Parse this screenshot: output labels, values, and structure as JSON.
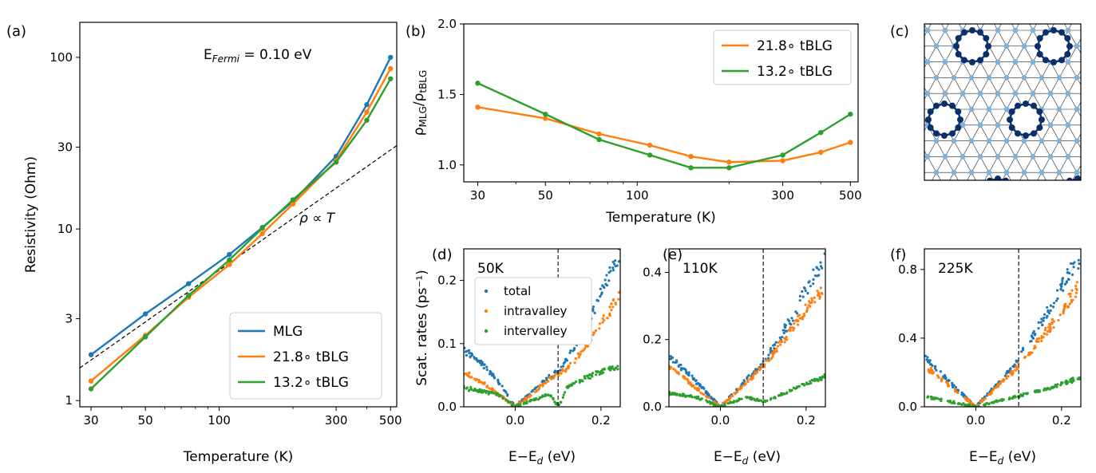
{
  "colors": {
    "mlg": "#1f77b4",
    "tblg218": "#ff7f0e",
    "tblg132": "#2ca02c",
    "dark_atom": "#0b2f6b",
    "light_atom": "#7fb3dc"
  },
  "chart_data": [
    {
      "id": "a",
      "type": "line",
      "panel_label": "(a)",
      "annotation": "E",
      "annotation_sub": "Fermi",
      "annotation_value": " = 0.10 eV",
      "fit_label": "ρ ∝ T",
      "xlabel": "Temperature (K)",
      "ylabel": "Resistivity (Ohm)",
      "xscale": "log",
      "yscale": "log",
      "xlim": [
        27,
        530
      ],
      "ylim": [
        0.92,
        160
      ],
      "xticks": [
        30,
        50,
        100,
        300,
        500
      ],
      "yticks": [
        1,
        3,
        10,
        30,
        100
      ],
      "legend_position": "lower right",
      "series": [
        {
          "name": "MLG",
          "x": [
            30,
            50,
            75,
            110,
            150,
            200,
            300,
            400,
            500
          ],
          "y": [
            1.85,
            3.2,
            4.8,
            7.1,
            10.2,
            14.5,
            26.5,
            53,
            100
          ]
        },
        {
          "name": "21.8$^\\circ$ tBLG",
          "label": "21.8∘ tBLG",
          "x": [
            30,
            50,
            75,
            110,
            150,
            200,
            300,
            400,
            500
          ],
          "y": [
            1.3,
            2.4,
            4.0,
            6.2,
            9.4,
            14.0,
            25.0,
            48,
            86
          ]
        },
        {
          "name": "13.2$^\\circ$ tBLG",
          "label": "13.2∘ tBLG",
          "x": [
            30,
            50,
            75,
            110,
            150,
            200,
            300,
            400,
            500
          ],
          "y": [
            1.17,
            2.35,
            4.1,
            6.6,
            10.1,
            14.8,
            24.5,
            43,
            75
          ]
        }
      ],
      "fit_line": {
        "x": [
          27,
          530
        ],
        "y": [
          1.55,
          30.6
        ]
      }
    },
    {
      "id": "b",
      "type": "line",
      "panel_label": "(b)",
      "xlabel": "Temperature (K)",
      "ylabel": "ρMLG/ρtBLG",
      "ylabel_main1": "ρ",
      "ylabel_sub1": "MLG",
      "ylabel_main2": "/ρ",
      "ylabel_sub2": "tBLG",
      "xscale": "log",
      "xlim": [
        27,
        530
      ],
      "ylim": [
        0.88,
        2.0
      ],
      "xticks": [
        30,
        50,
        100,
        300,
        500
      ],
      "yticks": [
        1.0,
        1.5,
        2.0
      ],
      "ytick_labels": [
        "1.0",
        "1.5",
        "2.0"
      ],
      "legend_position": "upper right",
      "series": [
        {
          "name": "21.8∘ tBLG",
          "x": [
            30,
            50,
            75,
            110,
            150,
            200,
            300,
            400,
            500
          ],
          "y": [
            1.41,
            1.33,
            1.22,
            1.14,
            1.06,
            1.02,
            1.03,
            1.09,
            1.16
          ]
        },
        {
          "name": "13.2∘ tBLG",
          "x": [
            30,
            50,
            75,
            110,
            150,
            200,
            300,
            400,
            500
          ],
          "y": [
            1.58,
            1.36,
            1.18,
            1.07,
            0.98,
            0.98,
            1.07,
            1.23,
            1.36
          ]
        }
      ]
    },
    {
      "id": "d",
      "type": "scatter",
      "panel_label": "(d)",
      "temperature_label": "50K",
      "xlabel": "E−E",
      "xlabel_sub": "d",
      "xlabel_unit": " (eV)",
      "ylabel": "Scat. rates (ps⁻¹)",
      "xlim": [
        -0.12,
        0.245
      ],
      "ylim": [
        0,
        0.25
      ],
      "xticks": [
        0.0,
        0.2
      ],
      "xtick_labels": [
        "0.0",
        "0.2"
      ],
      "yticks": [
        0.0,
        0.1,
        0.2
      ],
      "ytick_labels": [
        "0.0",
        "0.1",
        "0.2"
      ],
      "vline_x": 0.1,
      "legend_position": "upper left",
      "legend": [
        "total",
        "intravalley",
        "intervalley"
      ],
      "series": [
        {
          "name": "total",
          "x": [
            -0.12,
            -0.08,
            -0.04,
            0.0,
            0.04,
            0.08,
            0.1,
            0.12,
            0.16,
            0.2,
            0.245
          ],
          "y": [
            0.09,
            0.07,
            0.04,
            0.0,
            0.025,
            0.05,
            0.055,
            0.075,
            0.12,
            0.18,
            0.245
          ]
        },
        {
          "name": "intravalley",
          "x": [
            -0.12,
            -0.08,
            -0.04,
            0.0,
            0.04,
            0.08,
            0.1,
            0.12,
            0.16,
            0.2,
            0.245
          ],
          "y": [
            0.055,
            0.04,
            0.02,
            0.0,
            0.02,
            0.045,
            0.05,
            0.06,
            0.09,
            0.13,
            0.18
          ]
        },
        {
          "name": "intervalley",
          "x": [
            -0.12,
            -0.08,
            -0.04,
            0.0,
            0.04,
            0.08,
            0.095,
            0.105,
            0.12,
            0.16,
            0.2,
            0.245
          ],
          "y": [
            0.03,
            0.025,
            0.02,
            0.0,
            0.01,
            0.02,
            0.005,
            0.005,
            0.03,
            0.045,
            0.055,
            0.065
          ]
        }
      ]
    },
    {
      "id": "e",
      "type": "scatter",
      "panel_label": "(e)",
      "temperature_label": "110K",
      "xlabel": "E−E",
      "xlabel_sub": "d",
      "xlabel_unit": " (eV)",
      "xlim": [
        -0.12,
        0.245
      ],
      "ylim": [
        0,
        0.47
      ],
      "xticks": [
        0.0,
        0.2
      ],
      "xtick_labels": [
        "0.0",
        "0.2"
      ],
      "yticks": [
        0.0,
        0.2,
        0.4
      ],
      "ytick_labels": [
        "0.0",
        "0.2",
        "0.4"
      ],
      "vline_x": 0.1,
      "series": [
        {
          "name": "total",
          "x": [
            -0.12,
            -0.06,
            0.0,
            0.06,
            0.1,
            0.16,
            0.2,
            0.245
          ],
          "y": [
            0.15,
            0.08,
            0.0,
            0.08,
            0.13,
            0.25,
            0.35,
            0.45
          ]
        },
        {
          "name": "intravalley",
          "x": [
            -0.12,
            -0.06,
            0.0,
            0.06,
            0.1,
            0.16,
            0.2,
            0.245
          ],
          "y": [
            0.12,
            0.06,
            0.0,
            0.07,
            0.12,
            0.22,
            0.29,
            0.36
          ]
        },
        {
          "name": "intervalley",
          "x": [
            -0.12,
            -0.06,
            0.0,
            0.06,
            0.1,
            0.16,
            0.2,
            0.245
          ],
          "y": [
            0.04,
            0.03,
            0.0,
            0.03,
            0.015,
            0.045,
            0.07,
            0.09
          ]
        }
      ]
    },
    {
      "id": "f",
      "type": "scatter",
      "panel_label": "(f)",
      "temperature_label": "225K",
      "xlabel": "E−E",
      "xlabel_sub": "d",
      "xlabel_unit": " (eV)",
      "xlim": [
        -0.12,
        0.245
      ],
      "ylim": [
        0,
        0.92
      ],
      "xticks": [
        0.0,
        0.2
      ],
      "xtick_labels": [
        "0.0",
        "0.2"
      ],
      "yticks": [
        0.0,
        0.4,
        0.8
      ],
      "ytick_labels": [
        "0.0",
        "0.4",
        "0.8"
      ],
      "vline_x": 0.1,
      "series": [
        {
          "name": "total",
          "x": [
            -0.12,
            -0.06,
            0.0,
            0.06,
            0.1,
            0.16,
            0.2,
            0.245
          ],
          "y": [
            0.3,
            0.14,
            0.0,
            0.16,
            0.28,
            0.52,
            0.7,
            0.88
          ]
        },
        {
          "name": "intravalley",
          "x": [
            -0.12,
            -0.06,
            0.0,
            0.06,
            0.1,
            0.16,
            0.2,
            0.245
          ],
          "y": [
            0.24,
            0.12,
            0.0,
            0.14,
            0.24,
            0.42,
            0.56,
            0.72
          ]
        },
        {
          "name": "intervalley",
          "x": [
            -0.12,
            -0.06,
            0.0,
            0.06,
            0.1,
            0.16,
            0.2,
            0.245
          ],
          "y": [
            0.06,
            0.03,
            0.0,
            0.04,
            0.06,
            0.1,
            0.13,
            0.17
          ]
        }
      ]
    }
  ],
  "panel_c": {
    "panel_label": "(c)"
  }
}
